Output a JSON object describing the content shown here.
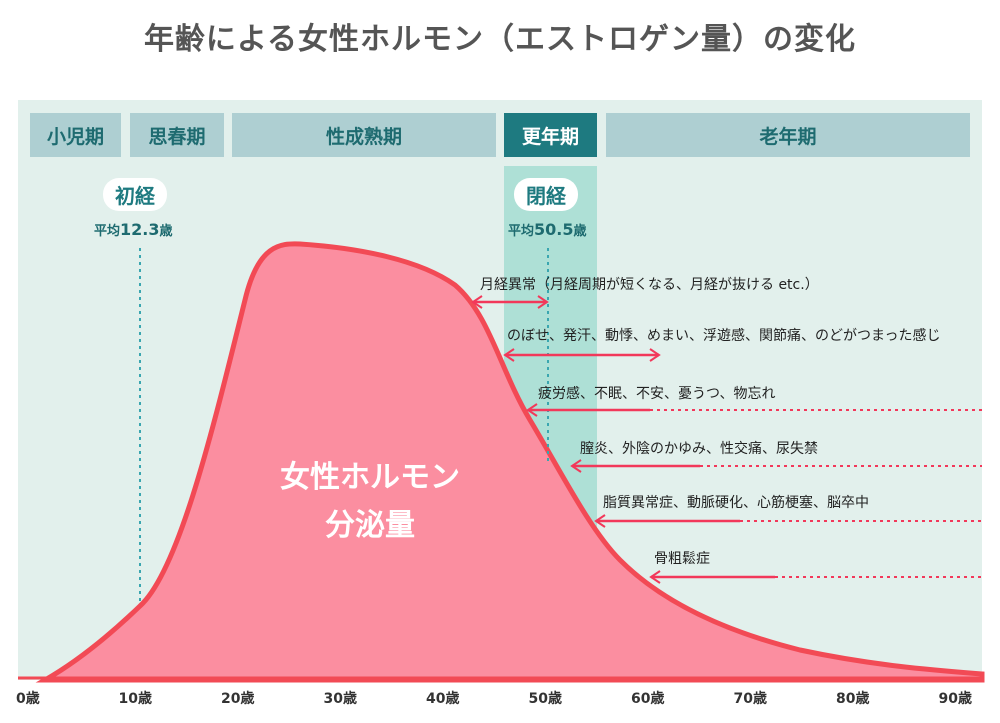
{
  "title": "年齢による女性ホルモン（エストロゲン量）の変化",
  "stages": [
    "小児期",
    "思春期",
    "性成熟期",
    "更年期",
    "老年期"
  ],
  "active_stage": "更年期",
  "menarche": {
    "label": "初経",
    "avg_prefix": "平均",
    "avg_value": "12.3",
    "avg_unit": "歳"
  },
  "menopause": {
    "label": "閉経",
    "avg_prefix": "平均",
    "avg_value": "50.5",
    "avg_unit": "歳"
  },
  "curve_label": [
    "女性ホルモン",
    "分泌量"
  ],
  "symptoms": [
    "月経異常（月経周期が短くなる、月経が抜ける etc.）",
    "のぼせ、発汗、動悸、めまい、浮遊感、関節痛、のどがつまった感じ",
    "疲労感、不眠、不安、憂うつ、物忘れ",
    "膣炎、外陰のかゆみ、性交痛、尿失禁",
    "脂質異常症、動脈硬化、心筋梗塞、脳卒中",
    "骨粗鬆症"
  ],
  "ages": [
    "0歳",
    "10歳",
    "20歳",
    "30歳",
    "40歳",
    "50歳",
    "60歳",
    "70歳",
    "80歳",
    "90歳"
  ],
  "colors": {
    "curve_fill": "#fb8ea0",
    "curve_stroke": "#f24a55",
    "arrow": "#f2385a",
    "stage": "#aecfd2",
    "stage_active": "#1e7a80",
    "panel": "#e2f0ec",
    "band": "#aee0d6"
  }
}
